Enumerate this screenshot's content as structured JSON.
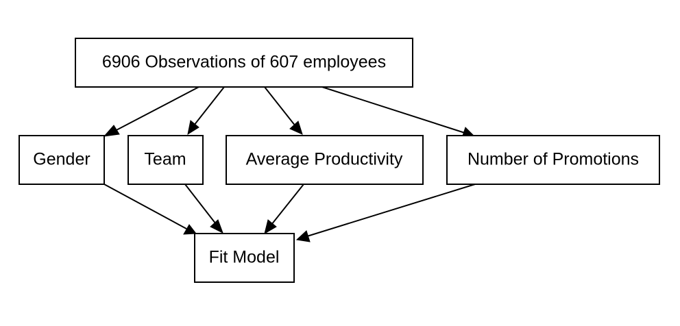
{
  "diagram": {
    "type": "flowchart",
    "nodes": {
      "source": {
        "label": "6906 Observations of 607 employees"
      },
      "gender": {
        "label": "Gender"
      },
      "team": {
        "label": "Team"
      },
      "avg_productivity": {
        "label": "Average Productivity"
      },
      "num_promotions": {
        "label": "Number of Promotions"
      },
      "fit_model": {
        "label": "Fit Model"
      }
    },
    "edges": [
      {
        "from": "source",
        "to": "gender"
      },
      {
        "from": "source",
        "to": "team"
      },
      {
        "from": "source",
        "to": "avg_productivity"
      },
      {
        "from": "source",
        "to": "num_promotions"
      },
      {
        "from": "gender",
        "to": "fit_model"
      },
      {
        "from": "team",
        "to": "fit_model"
      },
      {
        "from": "avg_productivity",
        "to": "fit_model"
      },
      {
        "from": "num_promotions",
        "to": "fit_model"
      }
    ],
    "colors": {
      "stroke": "#000000",
      "fill": "#ffffff",
      "text": "#000000"
    }
  }
}
